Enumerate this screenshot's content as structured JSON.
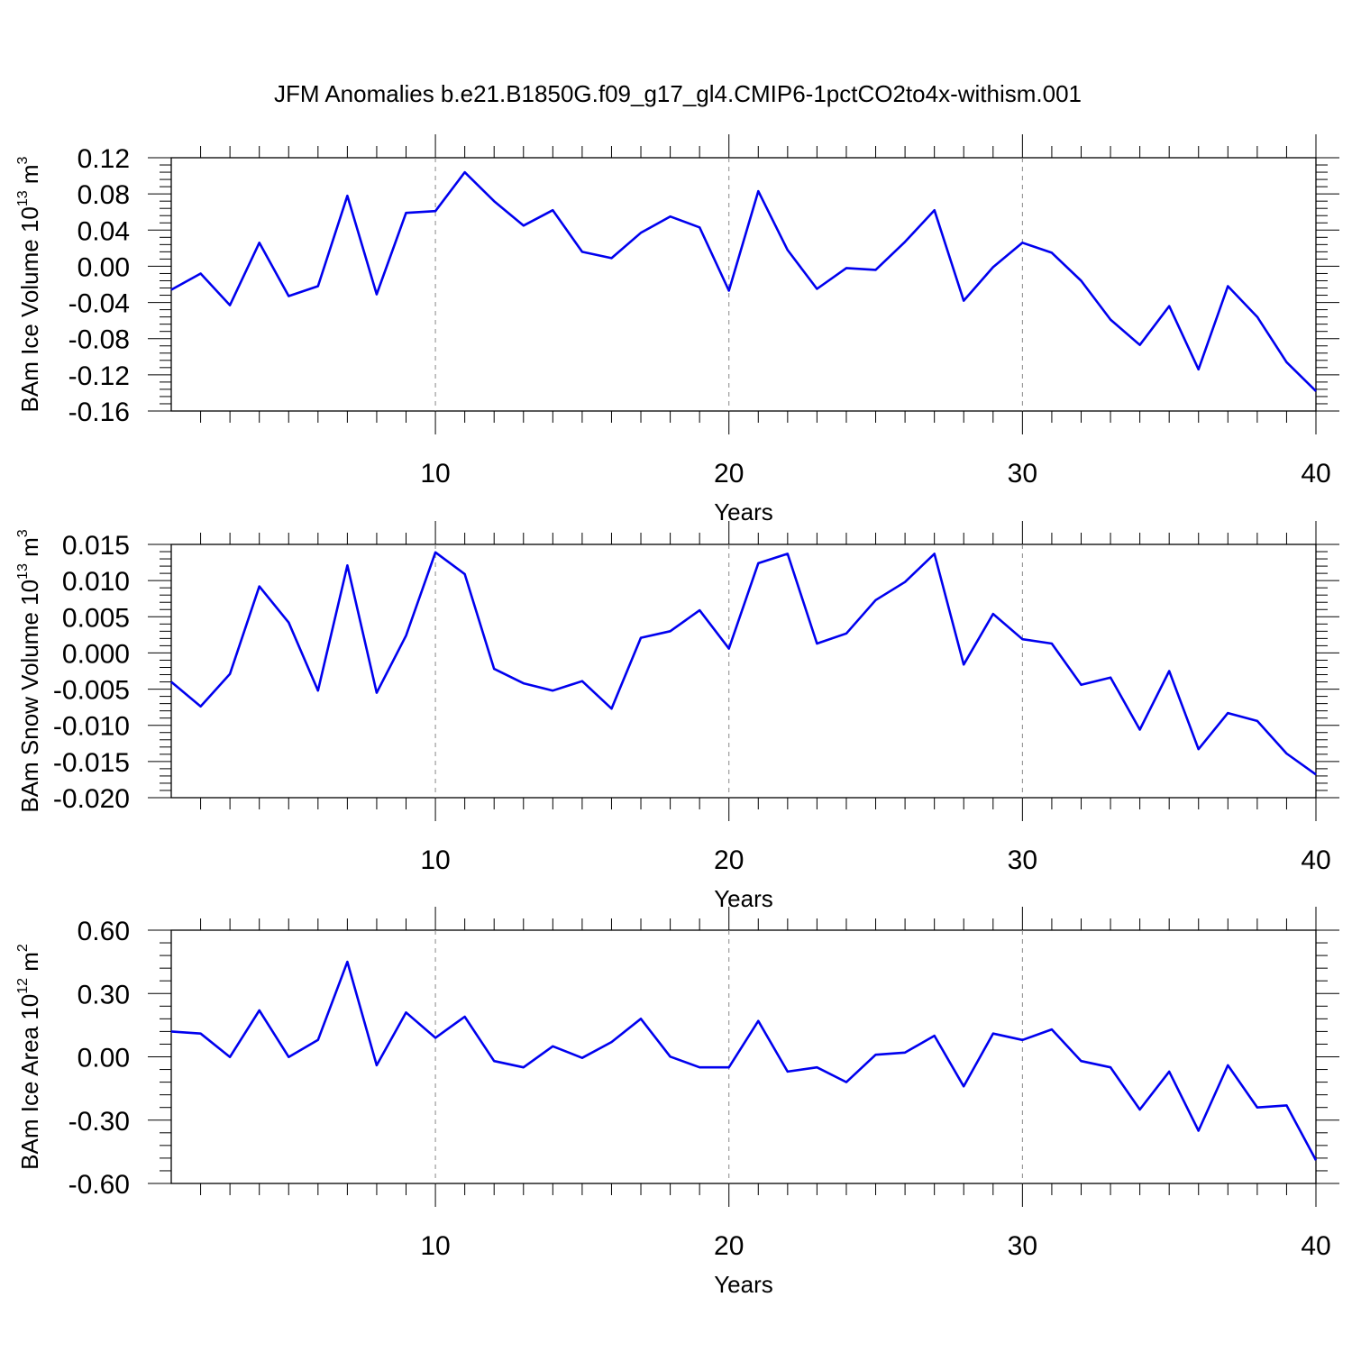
{
  "figure": {
    "title": "JFM Anomalies b.e21.B1850G.f09_g17_gl4.CMIP6-1pctCO2to4x-withism.001"
  },
  "chart_data": [
    {
      "type": "line",
      "ylabel": "BAm Ice Volume 10",
      "ylabel_exp": "13",
      "ylabel_unit": " m",
      "ylabel_unit_exp": "3",
      "xlabel": "Years",
      "xlim": [
        1,
        40
      ],
      "ylim": [
        -0.16,
        0.12
      ],
      "xticks": [
        10,
        20,
        30,
        40
      ],
      "yticks": [
        -0.16,
        -0.12,
        -0.08,
        -0.04,
        0.0,
        0.04,
        0.08,
        0.12
      ],
      "ytick_labels": [
        "-0.16",
        "-0.12",
        "-0.08",
        "-0.04",
        "0.00",
        "0.04",
        "0.08",
        "0.12"
      ],
      "grid_x": [
        10,
        20,
        30
      ],
      "line_color": "#0000ee",
      "x": [
        1,
        2,
        3,
        4,
        5,
        6,
        7,
        8,
        9,
        10,
        11,
        12,
        13,
        14,
        15,
        16,
        17,
        18,
        19,
        20,
        21,
        22,
        23,
        24,
        25,
        26,
        27,
        28,
        29,
        30,
        31,
        32,
        33,
        34,
        35,
        36,
        37,
        38,
        39,
        40
      ],
      "values": [
        -0.026,
        -0.008,
        -0.043,
        0.026,
        -0.033,
        -0.022,
        0.078,
        -0.031,
        0.059,
        0.061,
        0.104,
        0.072,
        0.045,
        0.062,
        0.016,
        0.009,
        0.037,
        0.055,
        0.043,
        -0.027,
        0.083,
        0.018,
        -0.025,
        -0.002,
        -0.004,
        0.027,
        0.062,
        -0.038,
        -0.001,
        0.026,
        0.015,
        -0.016,
        -0.059,
        -0.087,
        -0.044,
        -0.114,
        -0.022,
        -0.056,
        -0.106,
        -0.138
      ]
    },
    {
      "type": "line",
      "ylabel": "BAm Snow Volume 10",
      "ylabel_exp": "13",
      "ylabel_unit": " m",
      "ylabel_unit_exp": "3",
      "xlabel": "Years",
      "xlim": [
        1,
        40
      ],
      "ylim": [
        -0.02,
        0.015
      ],
      "xticks": [
        10,
        20,
        30,
        40
      ],
      "yticks": [
        -0.02,
        -0.015,
        -0.01,
        -0.005,
        0.0,
        0.005,
        0.01,
        0.015
      ],
      "ytick_labels": [
        "-0.020",
        "-0.015",
        "-0.010",
        "-0.005",
        "0.000",
        "0.005",
        "0.010",
        "0.015"
      ],
      "grid_x": [
        10,
        20,
        30
      ],
      "line_color": "#0000ee",
      "x": [
        1,
        2,
        3,
        4,
        5,
        6,
        7,
        8,
        9,
        10,
        11,
        12,
        13,
        14,
        15,
        16,
        17,
        18,
        19,
        20,
        21,
        22,
        23,
        24,
        25,
        26,
        27,
        28,
        29,
        30,
        31,
        32,
        33,
        34,
        35,
        36,
        37,
        38,
        39,
        40
      ],
      "values": [
        -0.004,
        -0.0074,
        -0.0029,
        0.0092,
        0.0042,
        -0.0052,
        0.0121,
        -0.0055,
        0.0024,
        0.0139,
        0.0109,
        -0.0022,
        -0.0042,
        -0.0052,
        -0.0039,
        -0.0077,
        0.0021,
        0.003,
        0.0059,
        0.0006,
        0.0124,
        0.0137,
        0.0013,
        0.0027,
        0.0073,
        0.0098,
        0.0137,
        -0.0016,
        0.0054,
        0.0019,
        0.0013,
        -0.0044,
        -0.0034,
        -0.0106,
        -0.0025,
        -0.0133,
        -0.0083,
        -0.0094,
        -0.0139,
        -0.0168
      ]
    },
    {
      "type": "line",
      "ylabel": "BAm Ice Area 10",
      "ylabel_exp": "12",
      "ylabel_unit": " m",
      "ylabel_unit_exp": "2",
      "xlabel": "Years",
      "xlim": [
        1,
        40
      ],
      "ylim": [
        -0.6,
        0.6
      ],
      "xticks": [
        10,
        20,
        30,
        40
      ],
      "yticks": [
        -0.6,
        -0.3,
        0.0,
        0.3,
        0.6
      ],
      "ytick_labels": [
        "-0.60",
        "-0.30",
        "0.00",
        "0.30",
        "0.60"
      ],
      "grid_x": [
        10,
        20,
        30
      ],
      "line_color": "#0000ee",
      "x": [
        1,
        2,
        3,
        4,
        5,
        6,
        7,
        8,
        9,
        10,
        11,
        12,
        13,
        14,
        15,
        16,
        17,
        18,
        19,
        20,
        21,
        22,
        23,
        24,
        25,
        26,
        27,
        28,
        29,
        30,
        31,
        32,
        33,
        34,
        35,
        36,
        37,
        38,
        39,
        40
      ],
      "values": [
        0.12,
        0.11,
        -0.001,
        0.22,
        -0.001,
        0.08,
        0.45,
        -0.04,
        0.21,
        0.09,
        0.19,
        -0.02,
        -0.05,
        0.05,
        -0.005,
        0.07,
        0.18,
        0.001,
        -0.05,
        -0.05,
        0.17,
        -0.07,
        -0.05,
        -0.12,
        0.01,
        0.02,
        0.1,
        -0.14,
        0.11,
        0.08,
        0.13,
        -0.02,
        -0.05,
        -0.25,
        -0.07,
        -0.35,
        -0.04,
        -0.24,
        -0.23,
        -0.49
      ]
    }
  ]
}
